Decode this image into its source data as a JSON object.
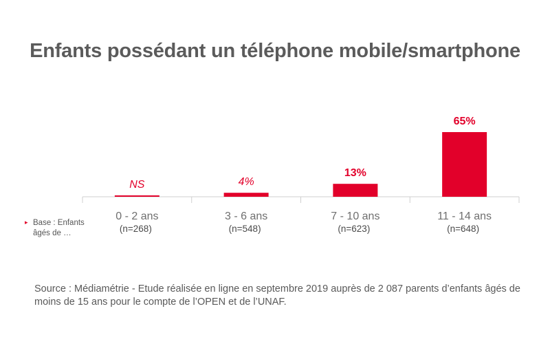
{
  "chart_data": {
    "type": "bar",
    "title": "Enfants possédant un téléphone mobile/smartphone",
    "categories": [
      "0 - 2 ans",
      "3 - 6 ans",
      "7 - 10 ans",
      "11 - 14 ans"
    ],
    "sample_sizes": [
      "(n=268)",
      "(n=548)",
      "(n=623)",
      "(n=648)"
    ],
    "values": [
      0.5,
      4,
      13,
      65
    ],
    "data_labels": [
      "NS",
      "4%",
      "13%",
      "65%"
    ],
    "label_styles": [
      "italic",
      "italic",
      "bold",
      "bold"
    ],
    "ylim": [
      0,
      65
    ],
    "grid": false,
    "bar_color": "#e2002a",
    "base_label": [
      "Base : Enfants",
      "âgés de …"
    ],
    "base_marker": "▸"
  },
  "source": "Source : Médiamétrie - Etude réalisée en ligne en septembre 2019 auprès de 2 087 parents d’enfants âgés de moins de 15 ans pour le compte de l’OPEN et de l’UNAF."
}
